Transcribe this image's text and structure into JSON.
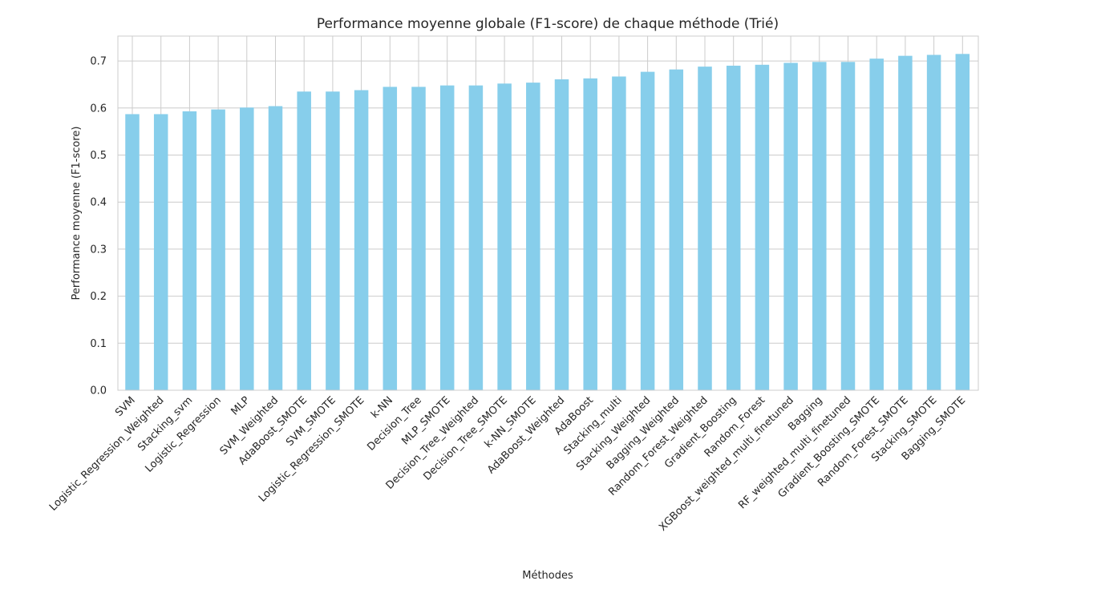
{
  "chart_data": {
    "type": "bar",
    "title": "Performance moyenne globale (F1-score) de chaque méthode (Trié)",
    "xlabel": "Méthodes",
    "ylabel": "Performance moyenne (F1-score)",
    "ylim": [
      0,
      0.753
    ],
    "yticks": [
      "0.0",
      "0.1",
      "0.2",
      "0.3",
      "0.4",
      "0.5",
      "0.6",
      "0.7"
    ],
    "grid": true,
    "bar_color": "#87ceeb",
    "categories": [
      "SVM",
      "Logistic_Regression_Weighted",
      "Stacking_svm",
      "Logistic_Regression",
      "MLP",
      "SVM_Weighted",
      "AdaBoost_SMOTE",
      "SVM_SMOTE",
      "Logistic_Regression_SMOTE",
      "k-NN",
      "Decision_Tree",
      "MLP_SMOTE",
      "Decision_Tree_Weighted",
      "Decision_Tree_SMOTE",
      "k-NN_SMOTE",
      "AdaBoost_Weighted",
      "AdaBoost",
      "Stacking_multi",
      "Stacking_Weighted",
      "Bagging_Weighted",
      "Random_Forest_Weighted",
      "Gradient_Boosting",
      "Random_Forest",
      "XGBoost_weighted_multi_finetuned",
      "Bagging",
      "RF_weighted_multi_finetuned",
      "Gradient_Boosting_SMOTE",
      "Random_Forest_SMOTE",
      "Stacking_SMOTE",
      "Bagging_SMOTE"
    ],
    "values": [
      0.587,
      0.587,
      0.593,
      0.597,
      0.601,
      0.604,
      0.635,
      0.635,
      0.638,
      0.645,
      0.645,
      0.648,
      0.648,
      0.652,
      0.654,
      0.661,
      0.663,
      0.667,
      0.677,
      0.682,
      0.688,
      0.69,
      0.692,
      0.696,
      0.698,
      0.698,
      0.705,
      0.711,
      0.713,
      0.715
    ]
  }
}
